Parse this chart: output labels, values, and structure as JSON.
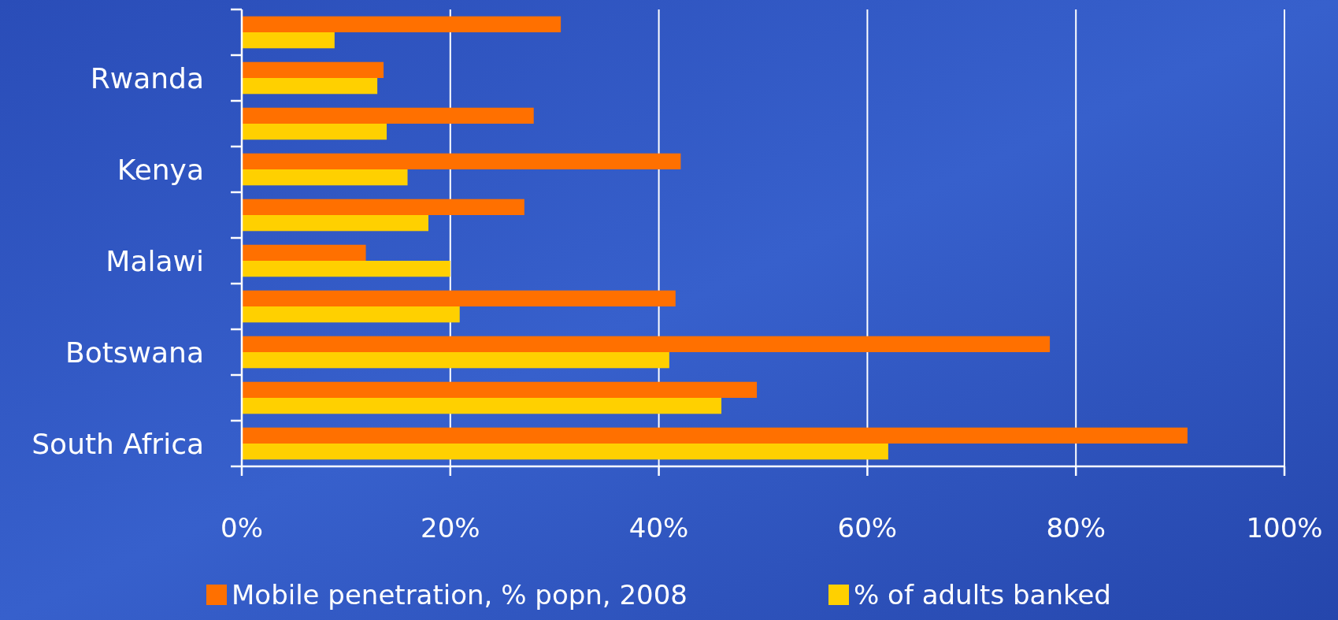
{
  "chart_data": {
    "type": "bar",
    "orientation": "horizontal",
    "categories": [
      null,
      "Rwanda",
      null,
      "Kenya",
      null,
      "Malawi",
      null,
      "Botswana",
      null,
      "South Africa"
    ],
    "series": [
      {
        "name": "Mobile penetration, % popn, 2008",
        "color": "#ff7000",
        "values": [
          30.6,
          13.6,
          28,
          42.1,
          27.1,
          11.9,
          41.6,
          77.5,
          49.4,
          90.7
        ]
      },
      {
        "name": "% of adults banked",
        "color": "#ffd000",
        "values": [
          8.9,
          13,
          13.9,
          15.9,
          17.9,
          20,
          20.9,
          41,
          46,
          62
        ]
      }
    ],
    "xlim": [
      0,
      100
    ],
    "xticks": [
      {
        "value": 0,
        "label": "0%"
      },
      {
        "value": 20,
        "label": "20%"
      },
      {
        "value": 40,
        "label": "40%"
      },
      {
        "value": 60,
        "label": "60%"
      },
      {
        "value": 80,
        "label": "80%"
      },
      {
        "value": 100,
        "label": "100%"
      }
    ],
    "grid": "x",
    "legend": "bottom"
  }
}
